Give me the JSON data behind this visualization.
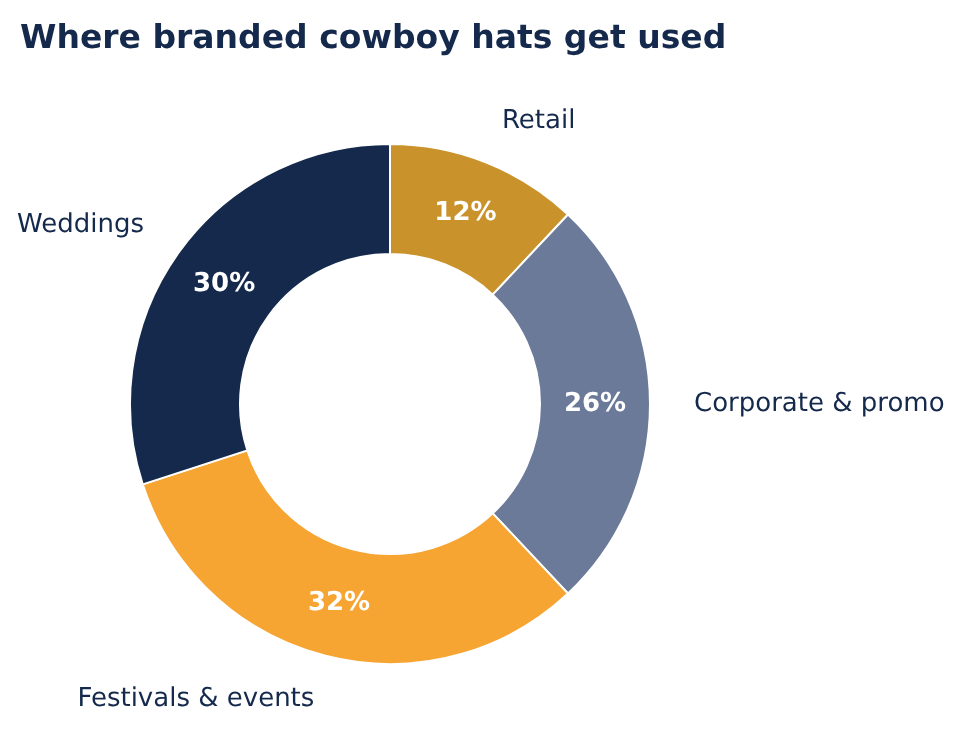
{
  "chart_data": {
    "type": "donut",
    "title": "Where branded cowboy hats get used",
    "categories": [
      "Retail",
      "Corporate & promo",
      "Festivals & events",
      "Weddings"
    ],
    "values": [
      12,
      26,
      32,
      30
    ],
    "value_labels": [
      "12%",
      "26%",
      "32%",
      "30%"
    ],
    "colors": [
      "#c9922b",
      "#6b7a99",
      "#f6a533",
      "#14294b"
    ]
  }
}
